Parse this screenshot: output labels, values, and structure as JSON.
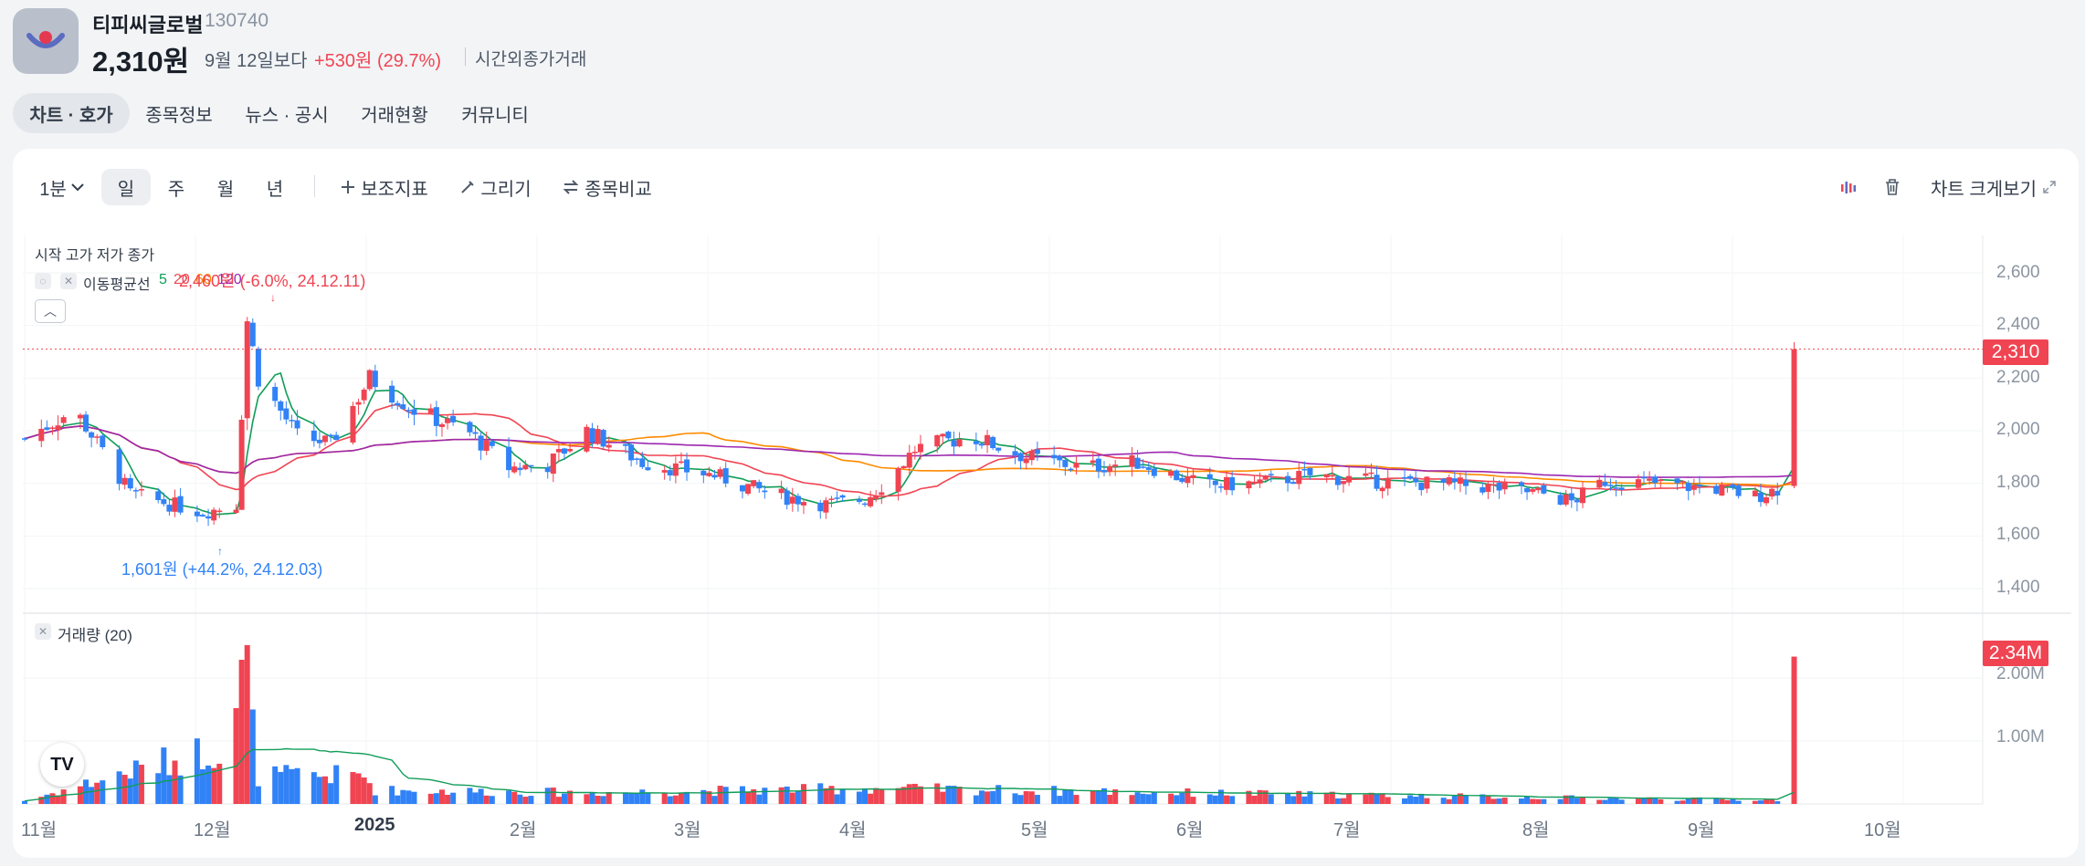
{
  "header": {
    "name": "티피씨글로벌",
    "code": "130740",
    "price": "2,310원",
    "ref_label": "9월 12일보다",
    "change": "+530원 (29.7%)",
    "after_hours": "시간외종가거래"
  },
  "tabs": [
    {
      "label": "차트 · 호가",
      "active": true
    },
    {
      "label": "종목정보"
    },
    {
      "label": "뉴스 · 공시"
    },
    {
      "label": "거래현황"
    },
    {
      "label": "커뮤니티"
    }
  ],
  "toolbar": {
    "interval": "1분",
    "periods": [
      "일",
      "주",
      "월",
      "년"
    ],
    "active_period": "일",
    "indicators": "보조지표",
    "draw": "그리기",
    "compare": "종목비교",
    "expand": "차트 크게보기"
  },
  "legend": {
    "ohlc": "시작 고가 저가 종가",
    "ma_label": "이동평균선",
    "ma": [
      {
        "period": "5",
        "color": "#0f9d58"
      },
      {
        "period": "20",
        "color": "#f04452"
      },
      {
        "period": "60",
        "color": "#ff8a00"
      },
      {
        "period": "120",
        "color": "#9c27b0"
      }
    ],
    "volume": "거래량 (20)"
  },
  "annotations": {
    "high": "2,460원 (-6.0%, 24.12.11)",
    "low": "1,601원 (+44.2%, 24.12.03)"
  },
  "price_axis": [
    "2,600",
    "2,400",
    "2,200",
    "2,000",
    "1,800",
    "1,600",
    "1,400"
  ],
  "volume_axis": [
    "2.00M",
    "1.00M"
  ],
  "current_price_tag": "2,310",
  "current_volume_tag": "2.34M",
  "x_axis": [
    "11월",
    "12월",
    "2025",
    "2월",
    "3월",
    "4월",
    "5월",
    "6월",
    "7월",
    "8월",
    "9월",
    "10월"
  ],
  "colors": {
    "up": "#f04452",
    "down": "#3182f6",
    "accent": "#f04452"
  },
  "icons": [
    "chevron-down-icon",
    "plus-icon",
    "pencil-icon",
    "compare-arrows-icon",
    "indicator-icon",
    "trash-icon",
    "expand-icon",
    "eye-off-icon",
    "close-icon",
    "chevron-up-icon",
    "tradingview-logo"
  ],
  "chart_data": {
    "type": "candlestick",
    "price_range": [
      1300,
      2700
    ],
    "volume_range": [
      0,
      2500000
    ],
    "last_price": 2310,
    "last_volume": 2340000,
    "anchors_price": [
      [
        "2024-11-01",
        1970
      ],
      [
        "2024-11-10",
        2080
      ],
      [
        "2024-11-20",
        1760
      ],
      [
        "2024-12-03",
        1690
      ],
      [
        "2024-12-09",
        1720
      ],
      [
        "2024-12-11",
        2420
      ],
      [
        "2024-12-13",
        2200
      ],
      [
        "2024-12-20",
        1980
      ],
      [
        "2024-12-26",
        1950
      ],
      [
        "2025-01-02",
        2200
      ],
      [
        "2025-01-10",
        2080
      ],
      [
        "2025-01-20",
        1990
      ],
      [
        "2025-01-27",
        1860
      ],
      [
        "2025-02-03",
        1870
      ],
      [
        "2025-02-10",
        2000
      ],
      [
        "2025-02-20",
        1880
      ],
      [
        "2025-03-05",
        1830
      ],
      [
        "2025-03-15",
        1760
      ],
      [
        "2025-03-25",
        1720
      ],
      [
        "2025-04-01",
        1740
      ],
      [
        "2025-04-05",
        1810
      ],
      [
        "2025-04-10",
        1930
      ],
      [
        "2025-04-20",
        1980
      ],
      [
        "2025-04-30",
        1900
      ],
      [
        "2025-05-10",
        1860
      ],
      [
        "2025-05-20",
        1880
      ],
      [
        "2025-06-01",
        1790
      ],
      [
        "2025-06-10",
        1800
      ],
      [
        "2025-06-20",
        1830
      ],
      [
        "2025-07-01",
        1810
      ],
      [
        "2025-07-20",
        1790
      ],
      [
        "2025-08-01",
        1760
      ],
      [
        "2025-08-06",
        1730
      ],
      [
        "2025-08-12",
        1810
      ],
      [
        "2025-08-20",
        1800
      ],
      [
        "2025-09-01",
        1780
      ],
      [
        "2025-09-08",
        1750
      ],
      [
        "2025-09-12",
        1780
      ],
      [
        "2025-09-15",
        2310
      ]
    ],
    "anchors_volume": [
      [
        "2024-11-01",
        50000
      ],
      [
        "2024-12-06",
        900000
      ],
      [
        "2024-12-11",
        2150000
      ],
      [
        "2024-12-12",
        1150000
      ],
      [
        "2024-12-13",
        450000
      ],
      [
        "2025-01-01",
        450000
      ],
      [
        "2025-01-03",
        220000
      ],
      [
        "2025-02-10",
        180000
      ],
      [
        "2025-04-03",
        250000
      ],
      [
        "2025-06-20",
        150000
      ],
      [
        "2025-09-12",
        60000
      ],
      [
        "2025-09-15",
        2340000
      ]
    ]
  }
}
